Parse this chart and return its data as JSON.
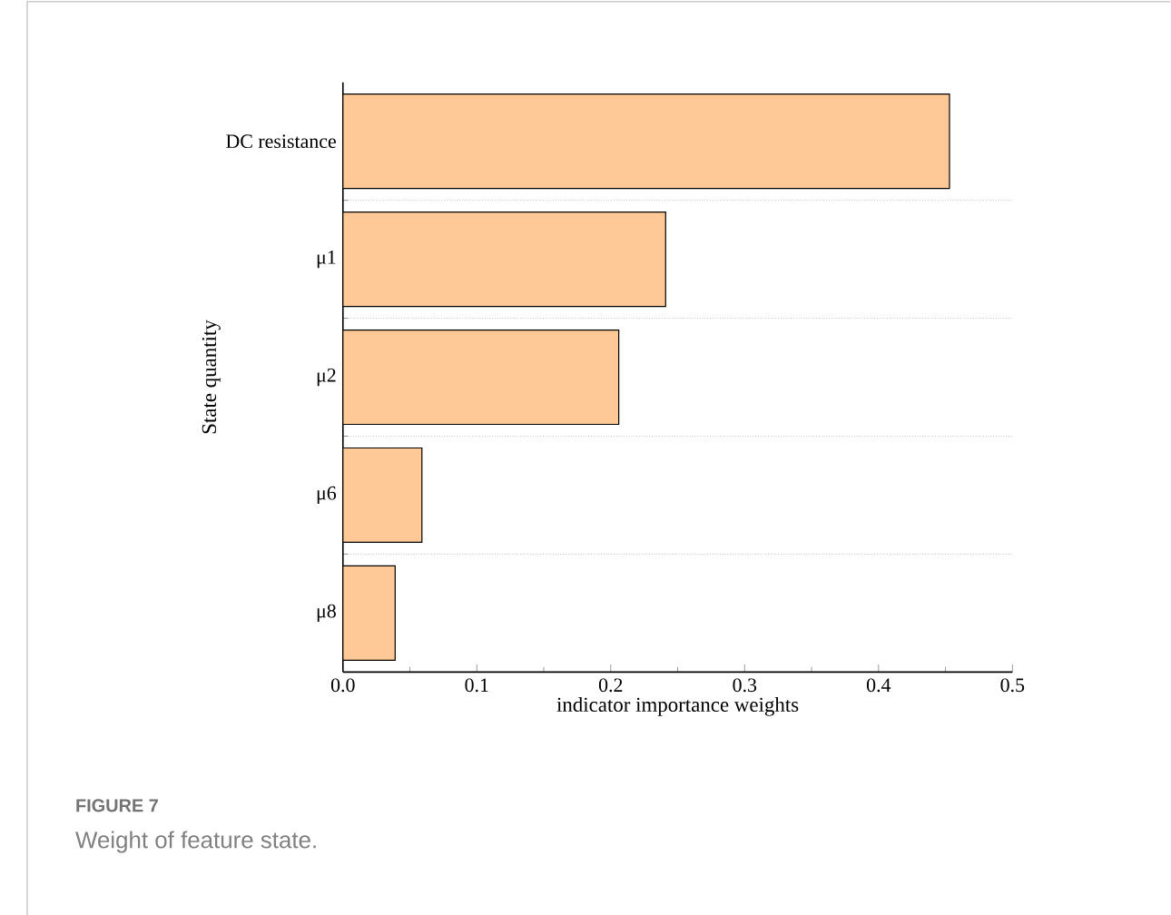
{
  "chart_data": {
    "type": "bar",
    "orientation": "horizontal",
    "categories": [
      "DC resistance",
      "μ1",
      "μ2",
      "μ6",
      "μ8"
    ],
    "values": [
      0.453,
      0.241,
      0.206,
      0.059,
      0.039
    ],
    "color": "#ffc896",
    "xlim": [
      0,
      0.5
    ],
    "xticks": [
      "0.0",
      0.1,
      0.2,
      0.3,
      0.4,
      0.5
    ],
    "xlabel": "indicator importance weights",
    "ylabel": "State quantity",
    "grid": "y",
    "annotations": [
      "FIGURE 7",
      "Weight of feature state."
    ]
  }
}
